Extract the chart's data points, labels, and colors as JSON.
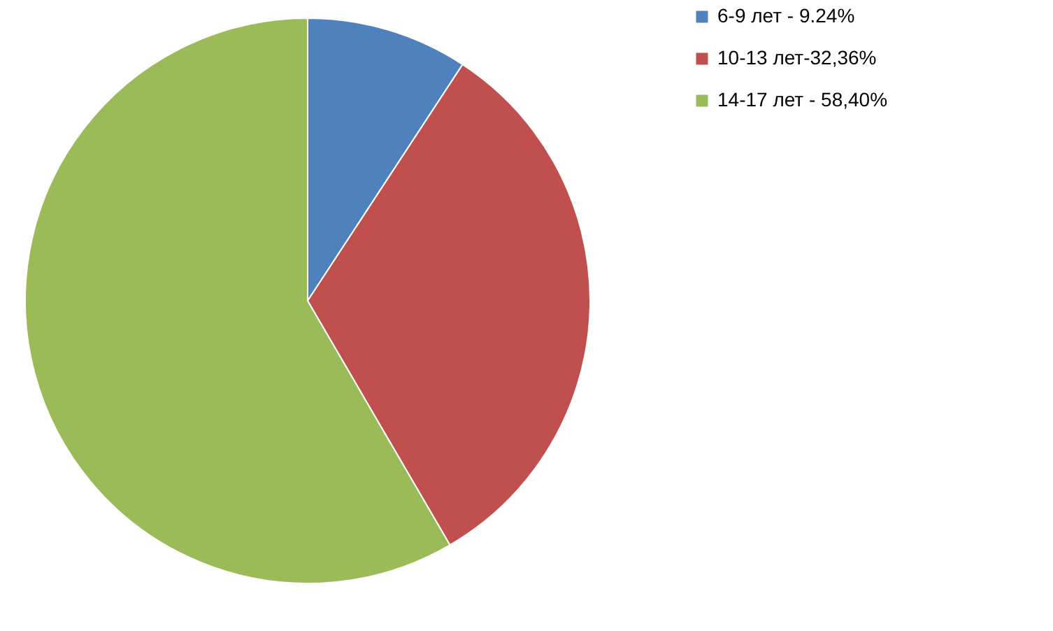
{
  "chart_data": {
    "type": "pie",
    "categories": [
      "6-9 лет  - 9.24%",
      "10-13 лет-32,36%",
      "14-17 лет  - 58,40%"
    ],
    "values": [
      9.24,
      32.36,
      58.4
    ],
    "colors": [
      "#4f81bd",
      "#c0504d",
      "#9bbb59"
    ],
    "legend": "right"
  }
}
